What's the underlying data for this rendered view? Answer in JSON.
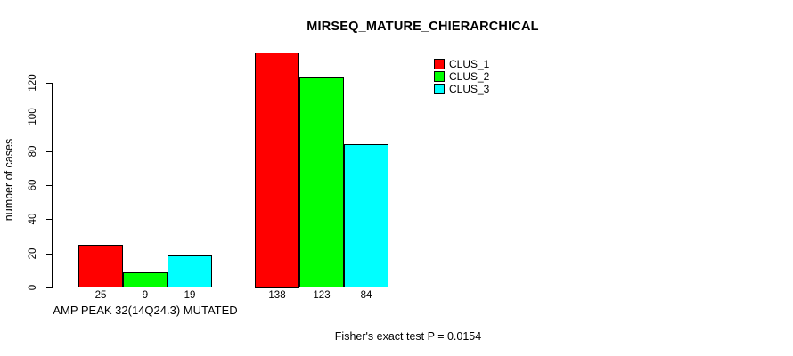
{
  "title": "MIRSEQ_MATURE_CHIERARCHICAL",
  "chart_data": {
    "type": "bar",
    "title": "MIRSEQ_MATURE_CHIERARCHICAL",
    "categories": [
      "AMP PEAK 32(14Q24.3) MUTATED",
      ""
    ],
    "series": [
      {
        "name": "CLUS_1",
        "color": "#ff0000",
        "values": [
          25,
          138
        ]
      },
      {
        "name": "CLUS_2",
        "color": "#00ff00",
        "values": [
          9,
          123
        ]
      },
      {
        "name": "CLUS_3",
        "color": "#00ffff",
        "values": [
          19,
          84
        ]
      }
    ],
    "ylabel": "number of cases",
    "xlabel": "",
    "yticks": [
      0,
      20,
      40,
      60,
      80,
      100,
      120
    ],
    "ylim": [
      0,
      138
    ],
    "bar_value_labels": true,
    "legend_position": "top-right",
    "grid": false
  },
  "annotation": "Fisher's exact test P = 0.0154"
}
